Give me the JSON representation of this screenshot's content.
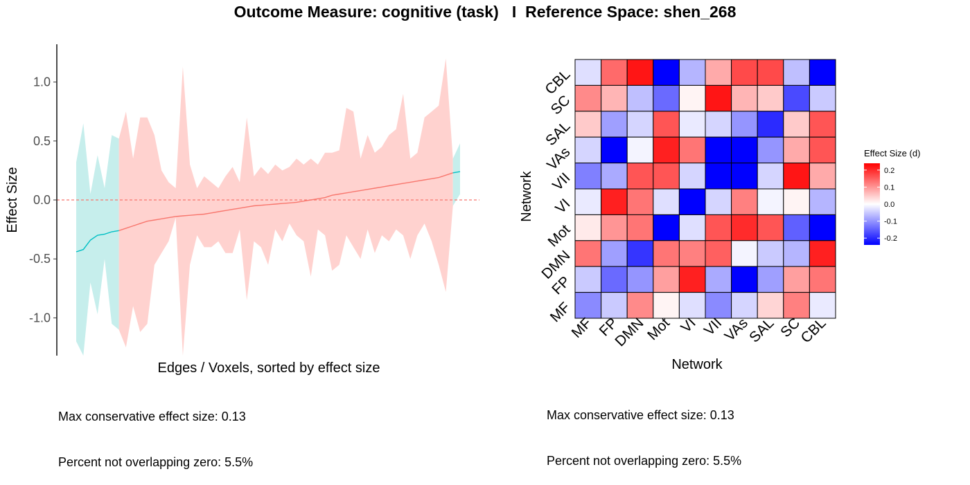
{
  "title": "Outcome Measure: cognitive (task)   I  Reference Space: shen_268",
  "left_notes": [
    "Max conservative effect size: 0.13",
    "Percent not overlapping zero: 5.5%"
  ],
  "right_notes": [
    "Max conservative effect size: 0.13",
    "Percent not overlapping zero: 5.5%"
  ],
  "colors": {
    "crosses_zero": "#f8766d",
    "not_crosses_zero": "#00bfc4",
    "ribbon_crosses_zero": "#ffd2cf",
    "ribbon_not_crosses_zero": "#c6eeec",
    "zero_line": "#f8766d",
    "heat_low": "#0000ff",
    "heat_mid": "#ffffff",
    "heat_high": "#ff0000"
  },
  "chart_data": [
    {
      "type": "line",
      "xlabel": "Edges / Voxels, sorted by effect size",
      "ylabel": "Effect Size",
      "x_ticks": [],
      "y_ticks": [
        "1.0",
        "0.5",
        "0.0",
        "-0.5",
        "-1.0"
      ],
      "y_tick_values": [
        1.0,
        0.5,
        0.0,
        -0.5,
        -1.0
      ],
      "ylim": [
        -1.32,
        1.32
      ],
      "xlim": [
        1,
        55
      ],
      "zero_line": "dashed",
      "grid": false,
      "series": [
        {
          "x": [
            1,
            2,
            3,
            4,
            5,
            6,
            7,
            8,
            9,
            10,
            11,
            12,
            13,
            14,
            15,
            16,
            17,
            18,
            19,
            20,
            21,
            22,
            23,
            24,
            25,
            26,
            27,
            28,
            29,
            30,
            31,
            32,
            33,
            34,
            35,
            36,
            37,
            38,
            39,
            40,
            41,
            42,
            43,
            44,
            45,
            46,
            47,
            48,
            49,
            50,
            51,
            52,
            53,
            54,
            55
          ],
          "y": [
            -0.44,
            -0.42,
            -0.34,
            -0.3,
            -0.29,
            -0.27,
            -0.26,
            -0.24,
            -0.22,
            -0.2,
            -0.18,
            -0.17,
            -0.16,
            -0.15,
            -0.14,
            -0.135,
            -0.13,
            -0.125,
            -0.12,
            -0.11,
            -0.1,
            -0.09,
            -0.08,
            -0.07,
            -0.06,
            -0.05,
            -0.045,
            -0.04,
            -0.035,
            -0.03,
            -0.025,
            -0.02,
            -0.01,
            0.0,
            0.01,
            0.02,
            0.04,
            0.05,
            0.06,
            0.07,
            0.08,
            0.09,
            0.1,
            0.11,
            0.12,
            0.13,
            0.14,
            0.15,
            0.16,
            0.17,
            0.18,
            0.19,
            0.21,
            0.23,
            0.24
          ],
          "lower": [
            -1.2,
            -1.32,
            -0.7,
            -0.97,
            -0.5,
            -1.05,
            -1.1,
            -1.25,
            -0.9,
            -1.12,
            -1.05,
            -0.55,
            -0.45,
            -0.35,
            -0.15,
            -1.32,
            -0.55,
            -0.3,
            -0.4,
            -0.4,
            -0.35,
            -0.45,
            -0.45,
            -0.25,
            -0.85,
            -0.35,
            -0.4,
            -0.55,
            -0.25,
            -0.35,
            -0.2,
            -0.3,
            -0.35,
            -0.65,
            -0.25,
            -0.3,
            -0.6,
            -0.55,
            -0.3,
            -0.4,
            -0.5,
            -0.25,
            -0.45,
            -0.3,
            -0.35,
            -0.25,
            -0.3,
            -0.5,
            -0.3,
            -0.2,
            -0.35,
            -0.55,
            -0.78,
            -0.05,
            0.05
          ],
          "upper": [
            0.32,
            0.65,
            0.05,
            0.38,
            0.1,
            0.55,
            0.52,
            0.75,
            0.35,
            0.7,
            0.7,
            0.55,
            0.25,
            0.15,
            0.1,
            1.13,
            0.3,
            0.1,
            0.2,
            0.15,
            0.1,
            0.2,
            0.28,
            0.15,
            0.7,
            0.2,
            0.28,
            0.22,
            0.3,
            0.25,
            0.28,
            0.35,
            0.3,
            0.35,
            0.3,
            0.4,
            0.4,
            0.42,
            0.78,
            0.75,
            0.35,
            0.55,
            0.4,
            0.45,
            0.55,
            0.6,
            0.9,
            0.35,
            0.4,
            0.7,
            0.75,
            0.8,
            1.2,
            0.35,
            0.48
          ],
          "not_crosses_zero_ranges": [
            [
              1,
              6
            ],
            [
              54,
              55
            ]
          ]
        }
      ]
    },
    {
      "type": "heatmap",
      "xlabel": "Network",
      "ylabel": "Network",
      "x_categories": [
        "MF",
        "FP",
        "DMN",
        "Mot",
        "VI",
        "VII",
        "VAs",
        "SAL",
        "SC",
        "CBL"
      ],
      "y_categories_top_to_bottom": [
        "CBL",
        "SC",
        "SAL",
        "VAs",
        "VII",
        "VI",
        "Mot",
        "DMN",
        "FP",
        "MF"
      ],
      "legend_title": "Effect Size (d)",
      "legend_ticks": [
        "0.2",
        "0.1",
        "0.0",
        "-0.1",
        "-0.2"
      ],
      "legend_tick_values": [
        0.2,
        0.1,
        0.0,
        -0.1,
        -0.2
      ],
      "range": [
        -0.24,
        0.24
      ],
      "values": [
        [
          -0.03,
          0.14,
          0.22,
          -0.24,
          -0.07,
          0.08,
          0.17,
          0.17,
          -0.06,
          -0.24
        ],
        [
          0.11,
          0.07,
          -0.06,
          -0.14,
          0.01,
          0.22,
          0.07,
          0.05,
          -0.17,
          -0.05
        ],
        [
          0.05,
          -0.09,
          -0.04,
          0.16,
          -0.02,
          -0.04,
          -0.1,
          -0.2,
          0.05,
          0.16
        ],
        [
          -0.04,
          -0.24,
          -0.01,
          0.21,
          0.13,
          -0.24,
          -0.24,
          -0.1,
          0.08,
          0.16
        ],
        [
          -0.12,
          -0.08,
          0.16,
          0.16,
          -0.04,
          -0.24,
          -0.24,
          -0.04,
          0.22,
          0.08
        ],
        [
          -0.02,
          0.21,
          0.13,
          -0.03,
          -0.24,
          -0.04,
          0.12,
          -0.01,
          0.01,
          -0.07
        ],
        [
          0.02,
          0.1,
          0.13,
          -0.24,
          -0.03,
          0.16,
          0.2,
          0.16,
          -0.15,
          -0.24
        ],
        [
          0.13,
          -0.09,
          -0.19,
          0.13,
          0.12,
          0.15,
          -0.01,
          -0.05,
          -0.07,
          0.21
        ],
        [
          -0.05,
          -0.14,
          -0.1,
          0.09,
          0.21,
          -0.08,
          -0.24,
          -0.09,
          0.09,
          0.13
        ],
        [
          -0.11,
          -0.05,
          0.11,
          0.01,
          -0.03,
          -0.11,
          -0.04,
          0.04,
          0.12,
          -0.02
        ]
      ]
    }
  ]
}
